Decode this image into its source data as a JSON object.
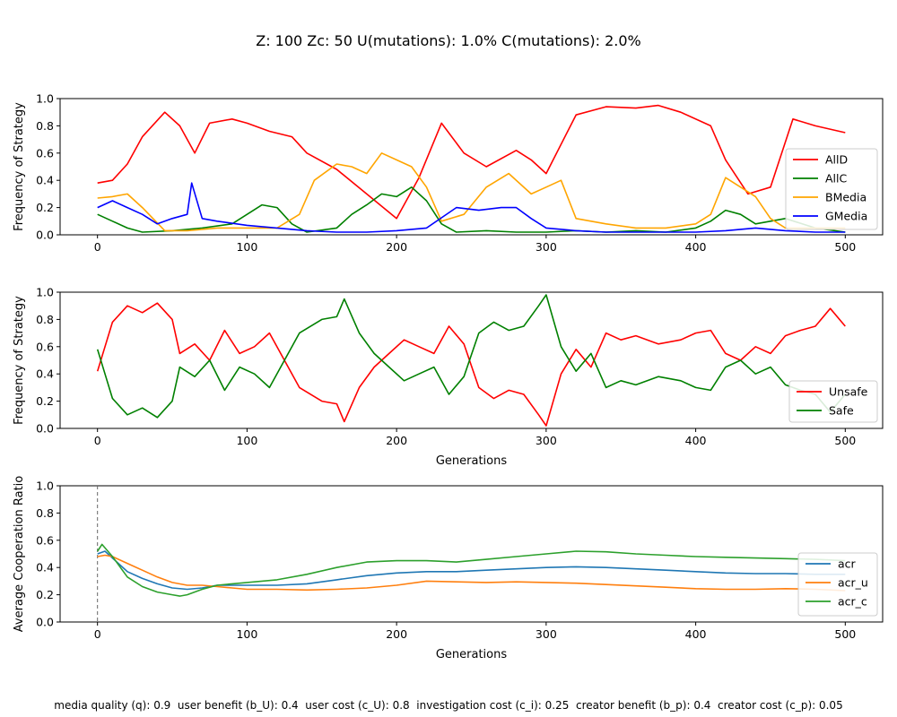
{
  "figure": {
    "title": "Z: 100  Zc: 50  U(mutations): 1.0%  C(mutations): 2.0%",
    "footer": "media quality (q): 0.9  user benefit (b_U): 0.4  user cost (c_U): 0.8  investigation cost (c_i): 0.25  creator benefit (b_p): 0.4  creator cost (c_p): 0.05"
  },
  "chart_data": [
    {
      "type": "line",
      "ylabel": "Frequency of Strategy",
      "xlabel": "",
      "xlim": [
        -25,
        525
      ],
      "ylim": [
        0,
        1
      ],
      "xticks": [
        0,
        100,
        200,
        300,
        400,
        500
      ],
      "yticks": [
        0.0,
        0.2,
        0.4,
        0.6,
        0.8,
        1.0
      ],
      "legend_position": "right",
      "series": [
        {
          "name": "AllD",
          "color": "#ff0000",
          "x": [
            0,
            10,
            20,
            30,
            45,
            55,
            65,
            75,
            90,
            100,
            115,
            130,
            140,
            160,
            180,
            200,
            215,
            230,
            245,
            260,
            280,
            290,
            300,
            320,
            340,
            360,
            375,
            390,
            410,
            420,
            435,
            450,
            465,
            480,
            500
          ],
          "y": [
            0.38,
            0.4,
            0.52,
            0.72,
            0.9,
            0.8,
            0.6,
            0.82,
            0.85,
            0.82,
            0.76,
            0.72,
            0.6,
            0.48,
            0.3,
            0.12,
            0.42,
            0.82,
            0.6,
            0.5,
            0.62,
            0.55,
            0.45,
            0.88,
            0.94,
            0.93,
            0.95,
            0.9,
            0.8,
            0.55,
            0.3,
            0.35,
            0.85,
            0.8,
            0.75
          ]
        },
        {
          "name": "AllC",
          "color": "#008000",
          "x": [
            0,
            10,
            20,
            30,
            50,
            70,
            90,
            100,
            110,
            120,
            130,
            140,
            160,
            170,
            180,
            190,
            200,
            210,
            220,
            230,
            240,
            260,
            280,
            300,
            320,
            340,
            360,
            380,
            400,
            410,
            420,
            430,
            440,
            460,
            480,
            500
          ],
          "y": [
            0.15,
            0.1,
            0.05,
            0.02,
            0.03,
            0.05,
            0.08,
            0.15,
            0.22,
            0.2,
            0.08,
            0.02,
            0.05,
            0.15,
            0.22,
            0.3,
            0.28,
            0.35,
            0.25,
            0.08,
            0.02,
            0.03,
            0.02,
            0.02,
            0.03,
            0.02,
            0.03,
            0.02,
            0.05,
            0.1,
            0.18,
            0.15,
            0.08,
            0.12,
            0.05,
            0.02
          ]
        },
        {
          "name": "BMedia",
          "color": "#ffa500",
          "x": [
            0,
            10,
            20,
            30,
            45,
            60,
            80,
            100,
            120,
            135,
            145,
            160,
            170,
            180,
            190,
            200,
            210,
            220,
            230,
            245,
            260,
            275,
            290,
            300,
            310,
            320,
            340,
            360,
            380,
            400,
            410,
            420,
            430,
            440,
            450,
            460,
            480,
            500
          ],
          "y": [
            0.27,
            0.28,
            0.3,
            0.2,
            0.03,
            0.03,
            0.05,
            0.05,
            0.05,
            0.15,
            0.4,
            0.52,
            0.5,
            0.45,
            0.6,
            0.55,
            0.5,
            0.35,
            0.1,
            0.15,
            0.35,
            0.45,
            0.3,
            0.35,
            0.4,
            0.12,
            0.08,
            0.05,
            0.05,
            0.08,
            0.15,
            0.42,
            0.35,
            0.28,
            0.12,
            0.05,
            0.05,
            0.05
          ]
        },
        {
          "name": "GMedia",
          "color": "#0000ff",
          "x": [
            0,
            10,
            20,
            30,
            40,
            50,
            60,
            63,
            70,
            80,
            100,
            120,
            140,
            160,
            180,
            200,
            220,
            240,
            255,
            270,
            280,
            290,
            300,
            320,
            340,
            360,
            380,
            400,
            420,
            440,
            460,
            480,
            500
          ],
          "y": [
            0.2,
            0.25,
            0.2,
            0.15,
            0.08,
            0.12,
            0.15,
            0.38,
            0.12,
            0.1,
            0.07,
            0.05,
            0.03,
            0.02,
            0.02,
            0.03,
            0.05,
            0.2,
            0.18,
            0.2,
            0.2,
            0.12,
            0.05,
            0.03,
            0.02,
            0.02,
            0.02,
            0.02,
            0.03,
            0.05,
            0.03,
            0.02,
            0.02
          ]
        }
      ]
    },
    {
      "type": "line",
      "ylabel": "Frequency of Strategy",
      "xlabel": "Generations",
      "xlim": [
        -25,
        525
      ],
      "ylim": [
        0,
        1
      ],
      "xticks": [
        0,
        100,
        200,
        300,
        400,
        500
      ],
      "yticks": [
        0.0,
        0.2,
        0.4,
        0.6,
        0.8,
        1.0
      ],
      "legend_position": "lower right",
      "series": [
        {
          "name": "Unsafe",
          "color": "#ff0000",
          "x": [
            0,
            10,
            20,
            30,
            40,
            50,
            55,
            65,
            75,
            85,
            95,
            105,
            115,
            125,
            135,
            150,
            160,
            165,
            175,
            185,
            195,
            205,
            215,
            225,
            235,
            245,
            255,
            265,
            275,
            285,
            295,
            300,
            310,
            320,
            330,
            340,
            350,
            360,
            375,
            390,
            400,
            410,
            420,
            430,
            440,
            450,
            460,
            470,
            480,
            490,
            500
          ],
          "y": [
            0.42,
            0.78,
            0.9,
            0.85,
            0.92,
            0.8,
            0.55,
            0.62,
            0.5,
            0.72,
            0.55,
            0.6,
            0.7,
            0.5,
            0.3,
            0.2,
            0.18,
            0.05,
            0.3,
            0.45,
            0.55,
            0.65,
            0.6,
            0.55,
            0.75,
            0.62,
            0.3,
            0.22,
            0.28,
            0.25,
            0.1,
            0.02,
            0.4,
            0.58,
            0.45,
            0.7,
            0.65,
            0.68,
            0.62,
            0.65,
            0.7,
            0.72,
            0.55,
            0.5,
            0.6,
            0.55,
            0.68,
            0.72,
            0.75,
            0.88,
            0.75
          ]
        },
        {
          "name": "Safe",
          "color": "#008000",
          "x": [
            0,
            10,
            20,
            30,
            40,
            50,
            55,
            65,
            75,
            85,
            95,
            105,
            115,
            125,
            135,
            150,
            160,
            165,
            175,
            185,
            195,
            205,
            215,
            225,
            235,
            245,
            255,
            265,
            275,
            285,
            295,
            300,
            310,
            320,
            330,
            340,
            350,
            360,
            375,
            390,
            400,
            410,
            420,
            430,
            440,
            450,
            460,
            470,
            480,
            490,
            500
          ],
          "y": [
            0.58,
            0.22,
            0.1,
            0.15,
            0.08,
            0.2,
            0.45,
            0.38,
            0.5,
            0.28,
            0.45,
            0.4,
            0.3,
            0.5,
            0.7,
            0.8,
            0.82,
            0.95,
            0.7,
            0.55,
            0.45,
            0.35,
            0.4,
            0.45,
            0.25,
            0.38,
            0.7,
            0.78,
            0.72,
            0.75,
            0.9,
            0.98,
            0.6,
            0.42,
            0.55,
            0.3,
            0.35,
            0.32,
            0.38,
            0.35,
            0.3,
            0.28,
            0.45,
            0.5,
            0.4,
            0.45,
            0.32,
            0.28,
            0.25,
            0.12,
            0.25
          ]
        }
      ]
    },
    {
      "type": "line",
      "ylabel": "Average Cooperation Ratio",
      "xlabel": "Generations",
      "xlim": [
        -25,
        525
      ],
      "ylim": [
        0,
        1
      ],
      "xticks": [
        0,
        100,
        200,
        300,
        400,
        500
      ],
      "yticks": [
        0.0,
        0.2,
        0.4,
        0.6,
        0.8,
        1.0
      ],
      "legend_position": "lower right",
      "vline_x": 0,
      "series": [
        {
          "name": "acr",
          "color": "#1f77b4",
          "x": [
            0,
            5,
            10,
            20,
            30,
            40,
            50,
            60,
            70,
            80,
            90,
            100,
            120,
            140,
            160,
            180,
            200,
            220,
            240,
            260,
            280,
            300,
            320,
            340,
            360,
            380,
            400,
            420,
            440,
            460,
            480,
            500
          ],
          "y": [
            0.5,
            0.52,
            0.47,
            0.37,
            0.32,
            0.28,
            0.25,
            0.24,
            0.25,
            0.27,
            0.27,
            0.27,
            0.27,
            0.28,
            0.31,
            0.34,
            0.36,
            0.37,
            0.37,
            0.38,
            0.39,
            0.4,
            0.405,
            0.4,
            0.39,
            0.38,
            0.37,
            0.36,
            0.355,
            0.355,
            0.35,
            0.35
          ]
        },
        {
          "name": "acr_u",
          "color": "#ff7f0e",
          "x": [
            0,
            5,
            10,
            20,
            30,
            40,
            50,
            60,
            70,
            80,
            90,
            100,
            120,
            140,
            160,
            180,
            200,
            220,
            240,
            260,
            280,
            300,
            320,
            340,
            360,
            380,
            400,
            420,
            440,
            460,
            480,
            500
          ],
          "y": [
            0.48,
            0.49,
            0.48,
            0.43,
            0.38,
            0.33,
            0.29,
            0.27,
            0.27,
            0.26,
            0.25,
            0.24,
            0.24,
            0.235,
            0.24,
            0.25,
            0.27,
            0.3,
            0.295,
            0.29,
            0.295,
            0.29,
            0.285,
            0.275,
            0.265,
            0.255,
            0.245,
            0.24,
            0.24,
            0.245,
            0.24,
            0.23
          ]
        },
        {
          "name": "acr_c",
          "color": "#2ca02c",
          "x": [
            0,
            3,
            10,
            20,
            30,
            40,
            50,
            55,
            60,
            70,
            80,
            90,
            100,
            120,
            140,
            160,
            180,
            200,
            220,
            240,
            260,
            280,
            300,
            320,
            340,
            360,
            380,
            400,
            420,
            440,
            460,
            480,
            500
          ],
          "y": [
            0.52,
            0.57,
            0.48,
            0.33,
            0.26,
            0.22,
            0.2,
            0.19,
            0.2,
            0.24,
            0.27,
            0.28,
            0.29,
            0.31,
            0.35,
            0.4,
            0.44,
            0.45,
            0.45,
            0.44,
            0.46,
            0.48,
            0.5,
            0.52,
            0.515,
            0.5,
            0.49,
            0.48,
            0.475,
            0.47,
            0.465,
            0.46,
            0.45
          ]
        }
      ]
    }
  ]
}
